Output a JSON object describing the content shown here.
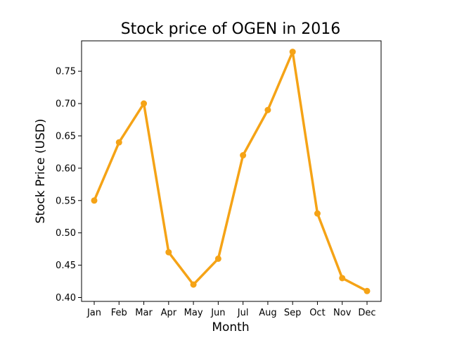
{
  "chart_data": {
    "type": "line",
    "title": "Stock price of OGEN in 2016",
    "xlabel": "Month",
    "ylabel": "Stock Price (USD)",
    "categories": [
      "Jan",
      "Feb",
      "Mar",
      "Apr",
      "May",
      "Jun",
      "Jul",
      "Aug",
      "Sep",
      "Oct",
      "Nov",
      "Dec"
    ],
    "series": [
      {
        "values": [
          0.55,
          0.64,
          0.7,
          0.47,
          0.42,
          0.46,
          0.62,
          0.69,
          0.78,
          0.53,
          0.43,
          0.41
        ],
        "color": "#f5a316"
      }
    ],
    "yticks": [
      "0.40",
      "0.45",
      "0.50",
      "0.55",
      "0.60",
      "0.65",
      "0.70",
      "0.75"
    ],
    "ylim": [
      0.394,
      0.797
    ],
    "grid": false,
    "legend": "none"
  }
}
